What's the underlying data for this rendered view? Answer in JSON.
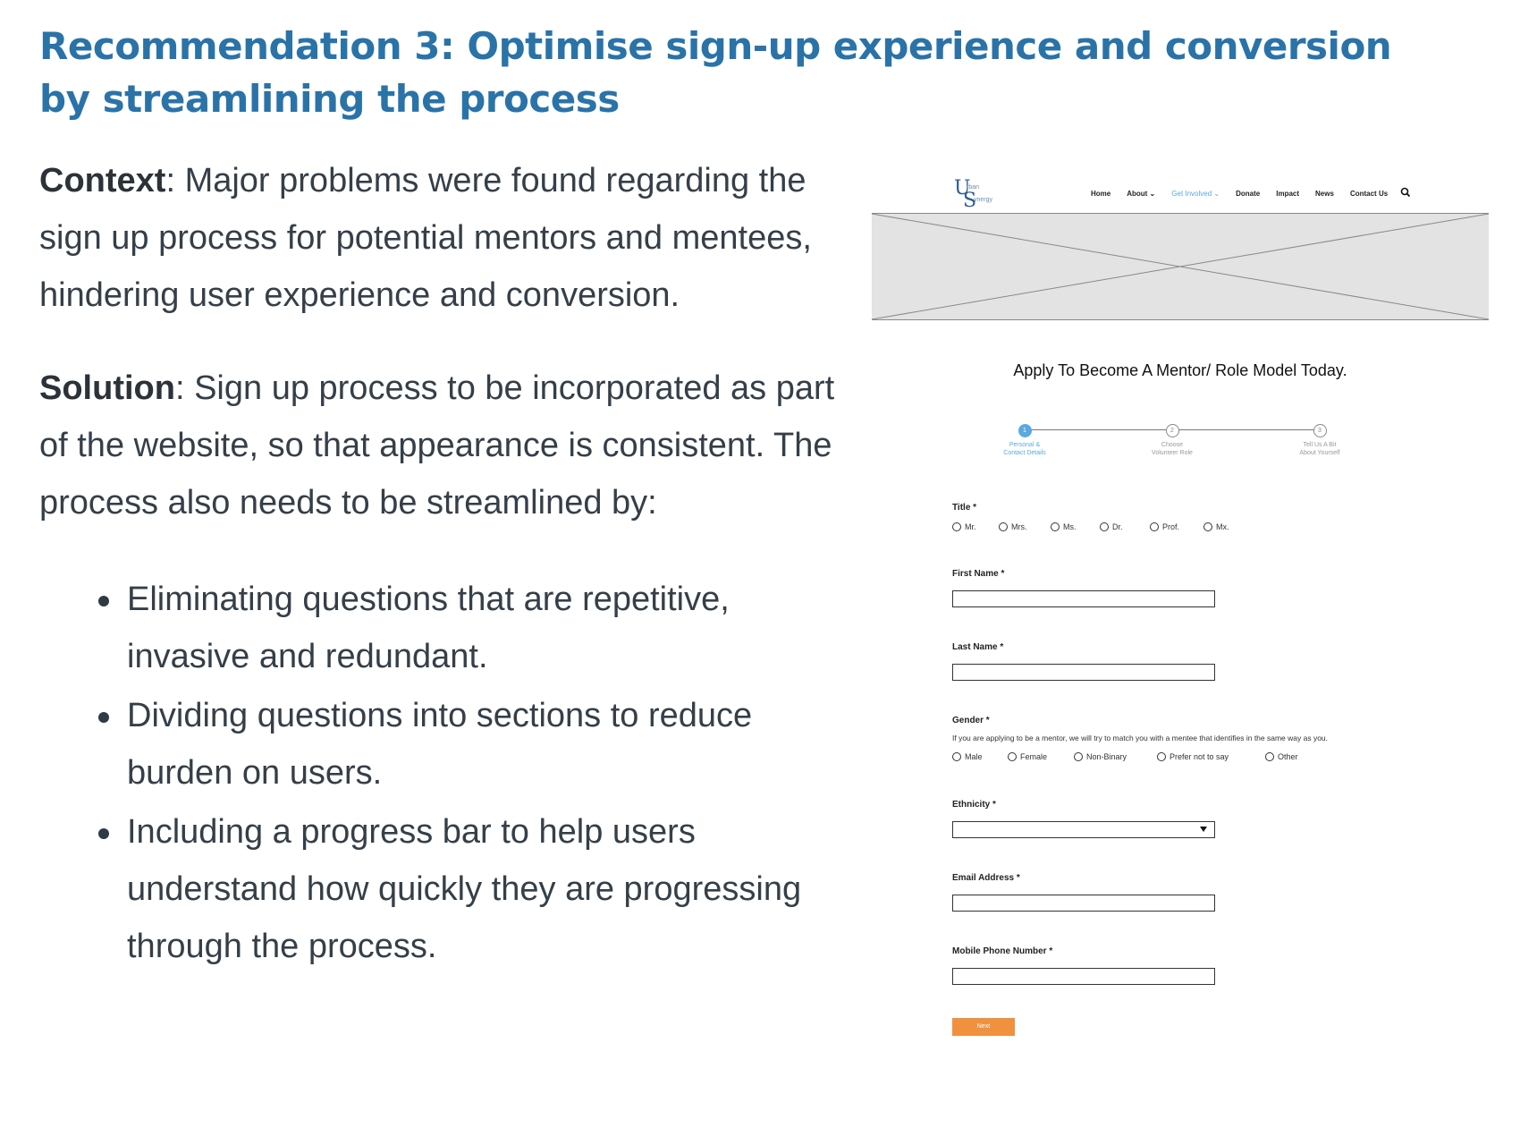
{
  "heading": "Recommendation 3: Optimise sign-up experience and conversion by streamlining the process",
  "context": {
    "label": "Context",
    "text": ": Major problems were found regarding the sign up process for potential mentors and mentees, hindering user experience and conversion."
  },
  "solution": {
    "label": "Solution",
    "text": ": Sign up process to be incorporated as part of the website, so that appearance is consistent. The process also needs to be streamlined by:"
  },
  "bullets": [
    "Eliminating questions that are repetitive, invasive and redundant.",
    "Dividing questions into sections to reduce burden on users.",
    "Including a progress bar to help users understand how quickly they are progressing through the process."
  ],
  "wireframe": {
    "logo": {
      "l1": "U",
      "t1": "rban",
      "l2": "S",
      "t2": "ynergy"
    },
    "nav": [
      "Home",
      "About ⌄",
      "Get Involved ⌄",
      "Donate",
      "Impact",
      "News",
      "Contact Us"
    ],
    "nav_active_index": 2,
    "form_title": "Apply To Become A Mentor/ Role Model Today.",
    "steps": [
      {
        "num": "1",
        "label1": "Personal &",
        "label2": "Contact Details"
      },
      {
        "num": "2",
        "label1": "Choose",
        "label2": "Volunteer Role"
      },
      {
        "num": "3",
        "label1": "Tell Us A Bit",
        "label2": "About Yourself"
      }
    ],
    "active_step": 0,
    "title_label": "Title *",
    "title_options": [
      "Mr.",
      "Mrs.",
      "Ms.",
      "Dr.",
      "Prof.",
      "Mx."
    ],
    "first_name_label": "First Name *",
    "last_name_label": "Last Name *",
    "gender_label": "Gender *",
    "gender_hint": "If you are applying to be a mentor, we will try to match you with a mentee that identifies in the same way as you.",
    "gender_options": [
      "Male",
      "Female",
      "Non-Binary",
      "Prefer not to say",
      "Other"
    ],
    "ethnicity_label": "Ethnicity *",
    "email_label": "Email Address *",
    "phone_label": "Mobile Phone Number *",
    "next_label": "Next"
  }
}
